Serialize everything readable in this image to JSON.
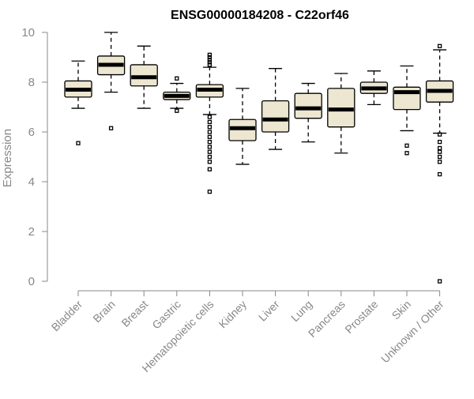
{
  "chart_data": {
    "type": "boxplot",
    "title": "ENSG00000184208 - C22orf46",
    "xlabel": "",
    "ylabel": "Expression",
    "ylim": [
      0,
      10
    ],
    "yticks": [
      "0",
      "2",
      "4",
      "6",
      "8",
      "10"
    ],
    "grid": false,
    "legend": "none",
    "colors": {
      "box_fill": "#ede6d0",
      "stroke": "#000000",
      "axis": "#888888"
    },
    "categories": [
      "Bladder",
      "Brain",
      "Breast",
      "Gastric",
      "Hematopoietic cells",
      "Kidney",
      "Liver",
      "Lung",
      "Pancreas",
      "Prostate",
      "Skin",
      "Unknown / Other"
    ],
    "boxes": [
      {
        "name": "Bladder",
        "min": 6.95,
        "q1": 7.4,
        "median": 7.7,
        "q3": 8.05,
        "max": 8.85,
        "outliers": [
          5.55
        ]
      },
      {
        "name": "Brain",
        "min": 7.6,
        "q1": 8.3,
        "median": 8.7,
        "q3": 9.05,
        "max": 10.0,
        "outliers": [
          6.15
        ]
      },
      {
        "name": "Breast",
        "min": 6.95,
        "q1": 7.85,
        "median": 8.2,
        "q3": 8.7,
        "max": 9.45,
        "outliers": []
      },
      {
        "name": "Gastric",
        "min": 6.95,
        "q1": 7.3,
        "median": 7.45,
        "q3": 7.6,
        "max": 7.95,
        "outliers": [
          8.15,
          6.85
        ]
      },
      {
        "name": "Hematopoietic cells",
        "min": 6.7,
        "q1": 7.4,
        "median": 7.7,
        "q3": 7.9,
        "max": 8.6,
        "outliers": [
          9.1,
          9.0,
          8.9,
          8.8,
          8.7,
          6.6,
          6.4,
          6.2,
          6.0,
          5.8,
          5.6,
          5.4,
          5.2,
          5.0,
          4.8,
          4.5,
          3.6
        ]
      },
      {
        "name": "Kidney",
        "min": 4.7,
        "q1": 5.65,
        "median": 6.15,
        "q3": 6.5,
        "max": 7.75,
        "outliers": []
      },
      {
        "name": "Liver",
        "min": 5.3,
        "q1": 6.0,
        "median": 6.5,
        "q3": 7.25,
        "max": 8.55,
        "outliers": []
      },
      {
        "name": "Lung",
        "min": 5.6,
        "q1": 6.55,
        "median": 6.95,
        "q3": 7.55,
        "max": 7.95,
        "outliers": []
      },
      {
        "name": "Pancreas",
        "min": 5.15,
        "q1": 6.2,
        "median": 6.9,
        "q3": 7.75,
        "max": 8.35,
        "outliers": []
      },
      {
        "name": "Prostate",
        "min": 7.1,
        "q1": 7.55,
        "median": 7.75,
        "q3": 8.0,
        "max": 8.45,
        "outliers": []
      },
      {
        "name": "Skin",
        "min": 6.05,
        "q1": 6.9,
        "median": 7.6,
        "q3": 7.8,
        "max": 8.65,
        "outliers": [
          5.45,
          5.15
        ]
      },
      {
        "name": "Unknown / Other",
        "min": 5.95,
        "q1": 7.2,
        "median": 7.65,
        "q3": 8.05,
        "max": 9.3,
        "outliers": [
          9.45,
          5.9,
          5.6,
          5.35,
          5.2,
          5.0,
          4.8,
          4.3,
          0.0
        ]
      }
    ]
  }
}
